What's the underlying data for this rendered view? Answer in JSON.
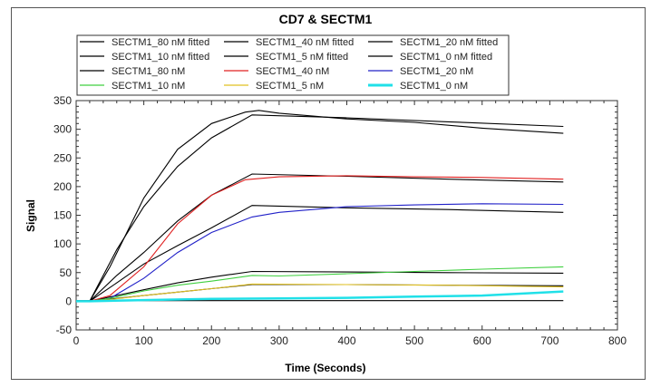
{
  "chart_data": {
    "type": "line",
    "title": "CD7 & SECTM1",
    "xlabel": "Time (Seconds)",
    "ylabel": "Signal",
    "xlim": [
      0,
      800
    ],
    "ylim": [
      -50,
      350
    ],
    "xticks": [
      0,
      100,
      200,
      300,
      400,
      500,
      600,
      700,
      800
    ],
    "yticks": [
      -50,
      0,
      50,
      100,
      150,
      200,
      250,
      300,
      350
    ],
    "grid": false,
    "legend_placement": "top",
    "series": [
      {
        "name": "SECTM1_80 nM fitted",
        "color": "#000000",
        "x": [
          0,
          20,
          60,
          100,
          150,
          200,
          260,
          400,
          550,
          720
        ],
        "y": [
          0,
          0,
          90,
          165,
          235,
          285,
          325,
          320,
          313,
          305
        ]
      },
      {
        "name": "SECTM1_40 nM fitted",
        "color": "#000000",
        "x": [
          0,
          20,
          60,
          100,
          150,
          200,
          260,
          400,
          550,
          720
        ],
        "y": [
          0,
          0,
          45,
          85,
          140,
          185,
          222,
          218,
          213,
          208
        ]
      },
      {
        "name": "SECTM1_20 nM fitted",
        "color": "#000000",
        "x": [
          0,
          20,
          60,
          100,
          150,
          200,
          260,
          400,
          550,
          720
        ],
        "y": [
          0,
          0,
          32,
          65,
          97,
          128,
          167,
          163,
          160,
          155
        ]
      },
      {
        "name": "SECTM1_10 nM fitted",
        "color": "#000000",
        "x": [
          0,
          20,
          100,
          150,
          200,
          260,
          400,
          550,
          720
        ],
        "y": [
          0,
          0,
          20,
          32,
          42,
          52,
          51,
          50,
          49
        ]
      },
      {
        "name": "SECTM1_5 nM fitted",
        "color": "#000000",
        "x": [
          0,
          20,
          100,
          150,
          200,
          260,
          400,
          550,
          720
        ],
        "y": [
          0,
          0,
          10,
          16,
          22,
          29,
          29,
          28,
          27
        ]
      },
      {
        "name": "SECTM1_0 nM fitted",
        "color": "#000000",
        "x": [
          0,
          720
        ],
        "y": [
          1,
          1
        ]
      },
      {
        "name": "SECTM1_80 nM",
        "color": "#000000",
        "x": [
          0,
          20,
          50,
          100,
          150,
          200,
          250,
          270,
          300,
          400,
          500,
          600,
          720
        ],
        "y": [
          0,
          0,
          60,
          180,
          265,
          310,
          330,
          333,
          328,
          318,
          312,
          302,
          293
        ]
      },
      {
        "name": "SECTM1_40 nM",
        "color": "#e02020",
        "x": [
          0,
          20,
          50,
          100,
          150,
          200,
          250,
          300,
          400,
          500,
          600,
          720
        ],
        "y": [
          0,
          0,
          10,
          60,
          135,
          185,
          212,
          217,
          219,
          217,
          216,
          213
        ]
      },
      {
        "name": "SECTM1_20 nM",
        "color": "#2020c8",
        "x": [
          0,
          20,
          50,
          100,
          150,
          200,
          260,
          300,
          400,
          500,
          600,
          720
        ],
        "y": [
          0,
          0,
          5,
          40,
          85,
          120,
          147,
          155,
          165,
          168,
          170,
          169
        ]
      },
      {
        "name": "SECTM1_10 nM",
        "color": "#40d040",
        "x": [
          0,
          20,
          50,
          100,
          150,
          200,
          260,
          300,
          400,
          500,
          600,
          720
        ],
        "y": [
          0,
          0,
          5,
          18,
          28,
          35,
          45,
          44,
          48,
          52,
          56,
          60
        ]
      },
      {
        "name": "SECTM1_5 nM",
        "color": "#e0c020",
        "x": [
          0,
          20,
          50,
          100,
          150,
          200,
          260,
          400,
          550,
          720
        ],
        "y": [
          0,
          0,
          3,
          10,
          16,
          22,
          30,
          29,
          28,
          25
        ]
      },
      {
        "name": "SECTM1_0 nM",
        "color": "#20e0e8",
        "x": [
          0,
          20,
          100,
          200,
          300,
          400,
          500,
          600,
          650,
          720
        ],
        "y": [
          0,
          0,
          2,
          4,
          5,
          6,
          8,
          10,
          13,
          17
        ]
      }
    ]
  }
}
